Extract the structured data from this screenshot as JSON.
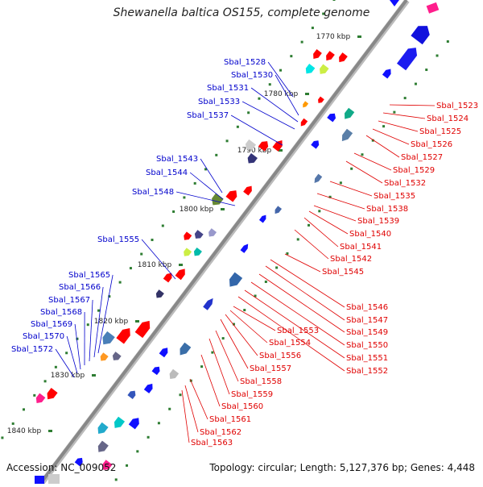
{
  "title": "Shewanella baltica OS155, complete genome",
  "accession": "Accession: NC_009052",
  "topology": "Topology: circular; Length: 5,127,376 bp; Genes: 4,448",
  "colors": {
    "backbone": "#888888",
    "tick": "#2e7d32",
    "forward_label": "#0000cc",
    "reverse_label": "#e00000",
    "forward_gene": "#1010ff",
    "reverse_gene": "#ff0000"
  },
  "ticks": [
    "1770 kbp",
    "1780 kbp",
    "1790 kbp",
    "1800 kbp",
    "1810 kbp",
    "1820 kbp",
    "1830 kbp",
    "1840 kbp"
  ],
  "forward_genes": [
    "Sbal_1528",
    "Sbal_1530",
    "Sbal_1531",
    "Sbal_1533",
    "Sbal_1537",
    "Sbal_1543",
    "Sbal_1544",
    "Sbal_1548",
    "Sbal_1555",
    "Sbal_1565",
    "Sbal_1566",
    "Sbal_1567",
    "Sbal_1568",
    "Sbal_1569",
    "Sbal_1570",
    "Sbal_1572"
  ],
  "reverse_genes": [
    "Sbal_1523",
    "Sbal_1524",
    "Sbal_1525",
    "Sbal_1526",
    "Sbal_1527",
    "Sbal_1529",
    "Sbal_1532",
    "Sbal_1535",
    "Sbal_1538",
    "Sbal_1539",
    "Sbal_1540",
    "Sbal_1541",
    "Sbal_1542",
    "Sbal_1545",
    "Sbal_1546",
    "Sbal_1547",
    "Sbal_1549",
    "Sbal_1550",
    "Sbal_1551",
    "Sbal_1552",
    "Sbal_1553",
    "Sbal_1554",
    "Sbal_1556",
    "Sbal_1557",
    "Sbal_1558",
    "Sbal_1559",
    "Sbal_1560",
    "Sbal_1561",
    "Sbal_1562",
    "Sbal_1563"
  ]
}
